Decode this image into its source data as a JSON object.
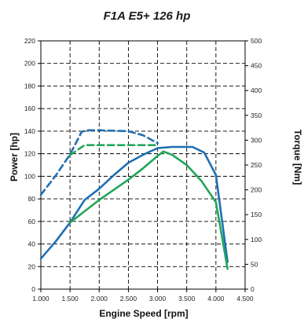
{
  "chart_data": {
    "type": "line",
    "title": "F1A E5+ 126 hp",
    "xlabel": "Engine Speed [rpm]",
    "ylabel": "Power [hp]",
    "y2label": "Torque [Nm]",
    "xlim": [
      1000,
      4500
    ],
    "ylim": [
      0,
      220
    ],
    "y2lim": [
      0,
      500
    ],
    "x_ticks": [
      1000,
      1500,
      2000,
      2500,
      3000,
      3500,
      4000,
      4500
    ],
    "x_tick_labels": [
      "1.000",
      "1.500",
      "2.000",
      "2.500",
      "3.000",
      "3.500",
      "4.000",
      "4.500"
    ],
    "y_ticks": [
      0,
      20,
      40,
      60,
      80,
      100,
      120,
      140,
      160,
      180,
      200,
      220
    ],
    "y2_ticks": [
      0,
      50,
      100,
      150,
      200,
      250,
      300,
      350,
      400,
      450,
      500
    ],
    "grid": true,
    "series": [
      {
        "axis": "left",
        "style": "solid",
        "color": "#1f6fb2",
        "points": [
          [
            1000,
            27
          ],
          [
            1250,
            42
          ],
          [
            1500,
            59
          ],
          [
            1750,
            79
          ],
          [
            2000,
            89
          ],
          [
            2250,
            101
          ],
          [
            2500,
            112
          ],
          [
            2750,
            119
          ],
          [
            3000,
            125
          ],
          [
            3250,
            126
          ],
          [
            3500,
            126
          ],
          [
            3600,
            126
          ],
          [
            3800,
            121
          ],
          [
            4000,
            101
          ],
          [
            4200,
            24
          ]
        ]
      },
      {
        "axis": "left",
        "style": "solid",
        "color": "#22a65a",
        "points": [
          [
            1500,
            59
          ],
          [
            1750,
            69
          ],
          [
            2000,
            79
          ],
          [
            2250,
            88
          ],
          [
            2500,
            97
          ],
          [
            2750,
            107
          ],
          [
            3000,
            118
          ],
          [
            3100,
            122
          ],
          [
            3250,
            119
          ],
          [
            3500,
            110
          ],
          [
            3750,
            96
          ],
          [
            4000,
            77
          ],
          [
            4200,
            18
          ]
        ]
      },
      {
        "axis": "right",
        "style": "dashed",
        "color": "#1f6fb2",
        "points": [
          [
            1000,
            190
          ],
          [
            1250,
            228
          ],
          [
            1500,
            271
          ],
          [
            1700,
            317
          ],
          [
            1800,
            320
          ],
          [
            2000,
            320
          ],
          [
            2250,
            319
          ],
          [
            2500,
            318
          ],
          [
            2750,
            310
          ],
          [
            3000,
            294
          ]
        ]
      },
      {
        "axis": "right",
        "style": "dashed",
        "color": "#22a65a",
        "points": [
          [
            1500,
            270
          ],
          [
            1750,
            290
          ],
          [
            2000,
            290
          ],
          [
            2500,
            290
          ],
          [
            3000,
            290
          ]
        ]
      }
    ]
  }
}
